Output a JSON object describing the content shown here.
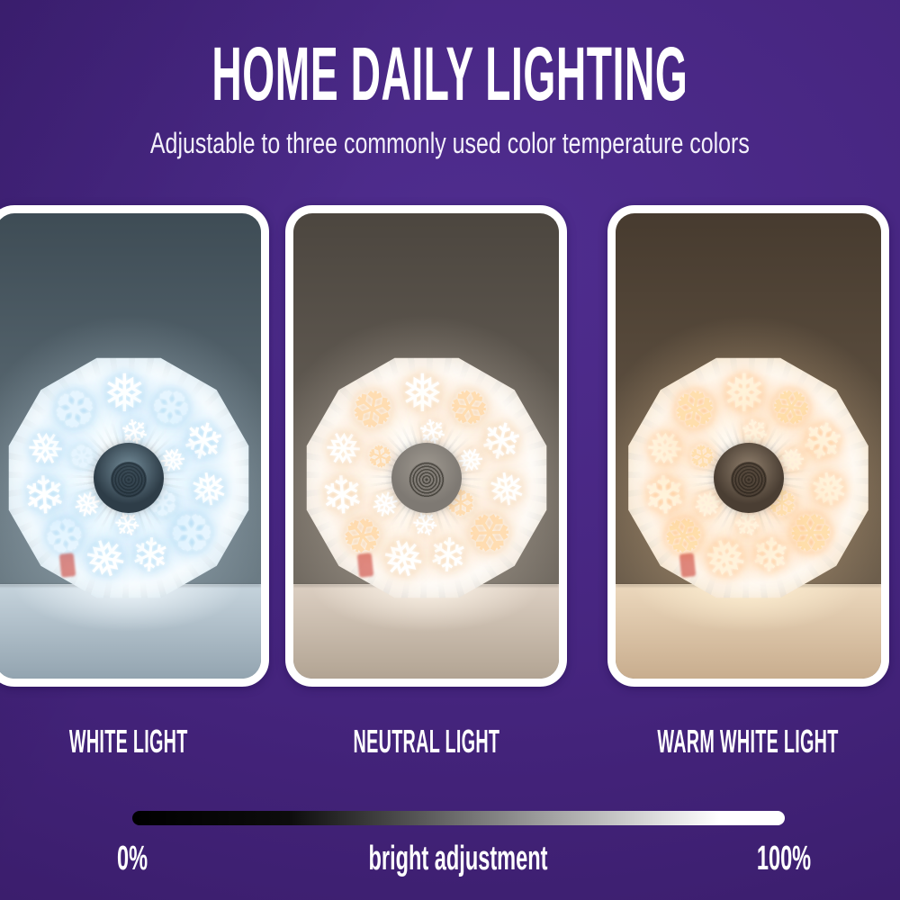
{
  "header": {
    "title": "HOME DAILY LIGHTING",
    "subtitle": "Adjustable to three commonly used color temperature colors"
  },
  "panels": [
    {
      "name": "white-light",
      "label": "WHITE LIGHT",
      "temperature_tint": "#dff0fa",
      "colors": {
        "wall_top": "#3e4c55",
        "wall_mid": "#6b7b84",
        "glow": "#d5e9f4",
        "lamp_inner": "#f3fafd",
        "lamp_edge": "#c6dbe7",
        "flake": "#ffffff",
        "flake_alt": "#e6f5ff",
        "flake_glow": "#a5d6f4",
        "center_bg": "#2e3d48",
        "center_rim": "#77909d",
        "grille": "#1d2a33",
        "table_top": "#c6d4dd",
        "table_bottom": "#93a4b0",
        "table_glow": "#f0f8fd"
      }
    },
    {
      "name": "neutral-light",
      "label": "NEUTRAL LIGHT",
      "temperature_tint": "#f6ecdd",
      "colors": {
        "wall_top": "#4c463f",
        "wall_mid": "#726b62",
        "glow": "#f3e7d7",
        "lamp_inner": "#fdf8f1",
        "lamp_edge": "#e2d6c8",
        "flake": "#ffffff",
        "flake_alt": "#ffddb2",
        "flake_glow": "#f5cfa4",
        "center_bg": "#7e7973",
        "center_rim": "#a09a91",
        "grille": "#3e3b34",
        "table_top": "#dccfc2",
        "table_bottom": "#b2a493",
        "table_glow": "#fdf4e8"
      }
    },
    {
      "name": "warm-white-light",
      "label": "WARM WHITE LIGHT",
      "temperature_tint": "#ffd9a6",
      "colors": {
        "wall_top": "#473b2f",
        "wall_mid": "#6d5e4c",
        "glow": "#ffd9a6",
        "lamp_inner": "#fdf2e2",
        "lamp_edge": "#ecd7ba",
        "flake": "#fff3dc",
        "flake_alt": "#ffdfae",
        "flake_glow": "#ffbe7c",
        "center_bg": "#4a3e33",
        "center_rim": "#93826f",
        "grille": "#2c241c",
        "table_top": "#ecd8bd",
        "table_bottom": "#c8ad8e",
        "table_glow": "#fff0d3"
      }
    }
  ],
  "brightness": {
    "min_label": "0%",
    "caption": "bright adjustment",
    "max_label": "100%",
    "gradient_from": "#000000",
    "gradient_to": "#ffffff"
  },
  "icons": {
    "snowflake_glyphs": [
      "❅",
      "❆",
      "❄"
    ]
  },
  "theme": {
    "background_purple": "#46257f",
    "panel_border": "#ffffff",
    "text_color": "#ffffff"
  }
}
